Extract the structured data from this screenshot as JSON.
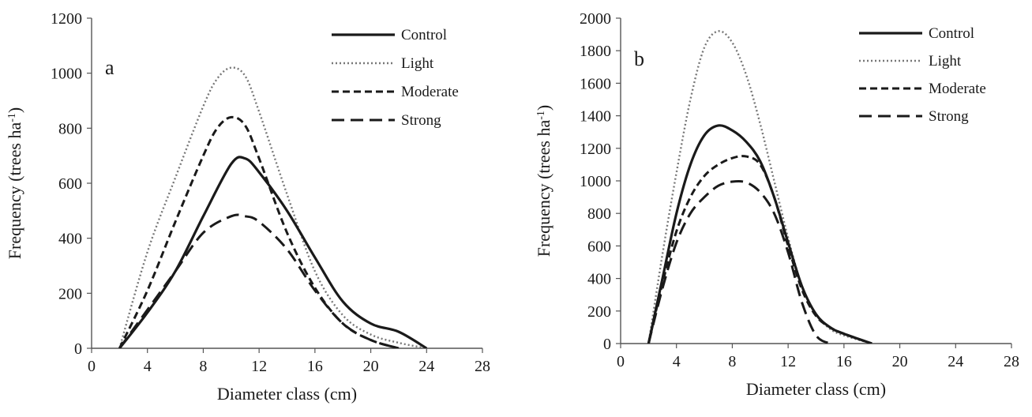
{
  "chart_data": [
    {
      "type": "line",
      "panel_label": "a",
      "xlabel": "Diameter class (cm)",
      "ylabel": "Frequency (trees ha",
      "ylabel_sup": "-1",
      "ylabel_close": ")",
      "xlim": [
        0,
        28
      ],
      "ylim": [
        0,
        1200
      ],
      "xticks": [
        "0",
        "4",
        "8",
        "12",
        "16",
        "20",
        "24",
        "28"
      ],
      "yticks": [
        "0",
        "200",
        "400",
        "600",
        "800",
        "1000",
        "1200"
      ],
      "legend_position": "top-right",
      "grid": false,
      "series": [
        {
          "name": "Control",
          "style": "solid",
          "color": "#1a1a1a",
          "x": [
            2,
            4,
            6,
            8,
            10,
            11,
            12,
            14,
            16,
            18,
            20,
            22,
            24
          ],
          "y": [
            0,
            130,
            280,
            480,
            670,
            690,
            640,
            500,
            330,
            170,
            90,
            60,
            0
          ]
        },
        {
          "name": "Light",
          "style": "dotted",
          "color": "#777777",
          "x": [
            2,
            4,
            6,
            8,
            9,
            10,
            11,
            12,
            14,
            16,
            18,
            20,
            22,
            24
          ],
          "y": [
            0,
            350,
            620,
            880,
            980,
            1020,
            990,
            860,
            560,
            280,
            120,
            50,
            20,
            0
          ]
        },
        {
          "name": "Moderate",
          "style": "dashed",
          "color": "#1a1a1a",
          "x": [
            2,
            4,
            6,
            8,
            9,
            10,
            11,
            12,
            14,
            16,
            18,
            20,
            22
          ],
          "y": [
            0,
            210,
            460,
            700,
            800,
            840,
            810,
            690,
            420,
            220,
            90,
            30,
            0
          ]
        },
        {
          "name": "Strong",
          "style": "longdash",
          "color": "#1a1a1a",
          "x": [
            2,
            4,
            6,
            8,
            10,
            11,
            12,
            14,
            16,
            18,
            20,
            22
          ],
          "y": [
            0,
            140,
            280,
            420,
            480,
            480,
            460,
            360,
            210,
            90,
            30,
            0
          ]
        }
      ]
    },
    {
      "type": "line",
      "panel_label": "b",
      "xlabel": "Diameter class (cm)",
      "ylabel": "Frequency (trees ha",
      "ylabel_sup": "-1",
      "ylabel_close": ")",
      "xlim": [
        0,
        28
      ],
      "ylim": [
        0,
        2000
      ],
      "xticks": [
        "0",
        "4",
        "8",
        "12",
        "16",
        "20",
        "24",
        "28"
      ],
      "yticks": [
        "0",
        "200",
        "400",
        "600",
        "800",
        "1000",
        "1200",
        "1400",
        "1600",
        "1800",
        "2000"
      ],
      "legend_position": "top-right",
      "grid": false,
      "series": [
        {
          "name": "Control",
          "style": "solid",
          "color": "#1a1a1a",
          "x": [
            2,
            3,
            4,
            5,
            6,
            7,
            8,
            9,
            10,
            11,
            12,
            13,
            14,
            15,
            16,
            18
          ],
          "y": [
            0,
            400,
            800,
            1100,
            1280,
            1340,
            1310,
            1240,
            1120,
            900,
            620,
            350,
            180,
            100,
            60,
            0
          ]
        },
        {
          "name": "Light",
          "style": "dotted",
          "color": "#777777",
          "x": [
            2,
            3,
            4,
            5,
            6,
            7,
            8,
            9,
            10,
            11,
            12,
            13,
            14,
            15,
            16,
            18
          ],
          "y": [
            0,
            550,
            1050,
            1500,
            1820,
            1920,
            1850,
            1650,
            1350,
            1000,
            650,
            350,
            180,
            90,
            50,
            0
          ]
        },
        {
          "name": "Moderate",
          "style": "dashed",
          "color": "#1a1a1a",
          "x": [
            2,
            3,
            4,
            5,
            6,
            7,
            8,
            9,
            10,
            11,
            12,
            13,
            14,
            15,
            16,
            18
          ],
          "y": [
            0,
            370,
            690,
            900,
            1030,
            1100,
            1140,
            1150,
            1100,
            900,
            600,
            330,
            170,
            100,
            60,
            0
          ]
        },
        {
          "name": "Strong",
          "style": "longdash",
          "color": "#1a1a1a",
          "x": [
            2,
            3,
            4,
            5,
            6,
            7,
            8,
            9,
            10,
            11,
            12,
            13,
            14,
            15
          ],
          "y": [
            0,
            340,
            620,
            800,
            900,
            970,
            995,
            990,
            930,
            800,
            560,
            250,
            50,
            0
          ]
        }
      ]
    }
  ]
}
